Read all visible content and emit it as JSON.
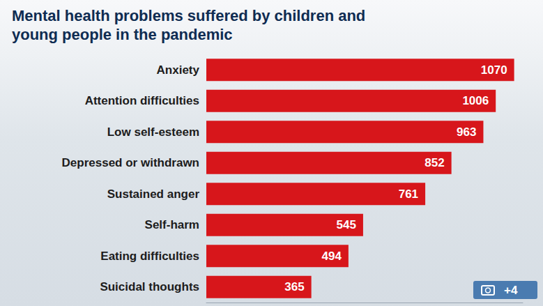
{
  "chart_data": {
    "type": "bar",
    "orientation": "horizontal",
    "title": "Mental health problems suffered by children and young people in the pandemic",
    "categories": [
      "Anxiety",
      "Attention difficulties",
      "Low self-esteem",
      "Depressed or withdrawn",
      "Sustained anger",
      "Self-harm",
      "Eating difficulties",
      "Suicidal thoughts"
    ],
    "values": [
      1070,
      1006,
      963,
      852,
      761,
      545,
      494,
      365
    ],
    "color": "#d7161b",
    "xlim": [
      0,
      1100
    ],
    "data_labels": true,
    "tick_labels": "y",
    "grid": false,
    "annotations": [
      "+4"
    ]
  }
}
